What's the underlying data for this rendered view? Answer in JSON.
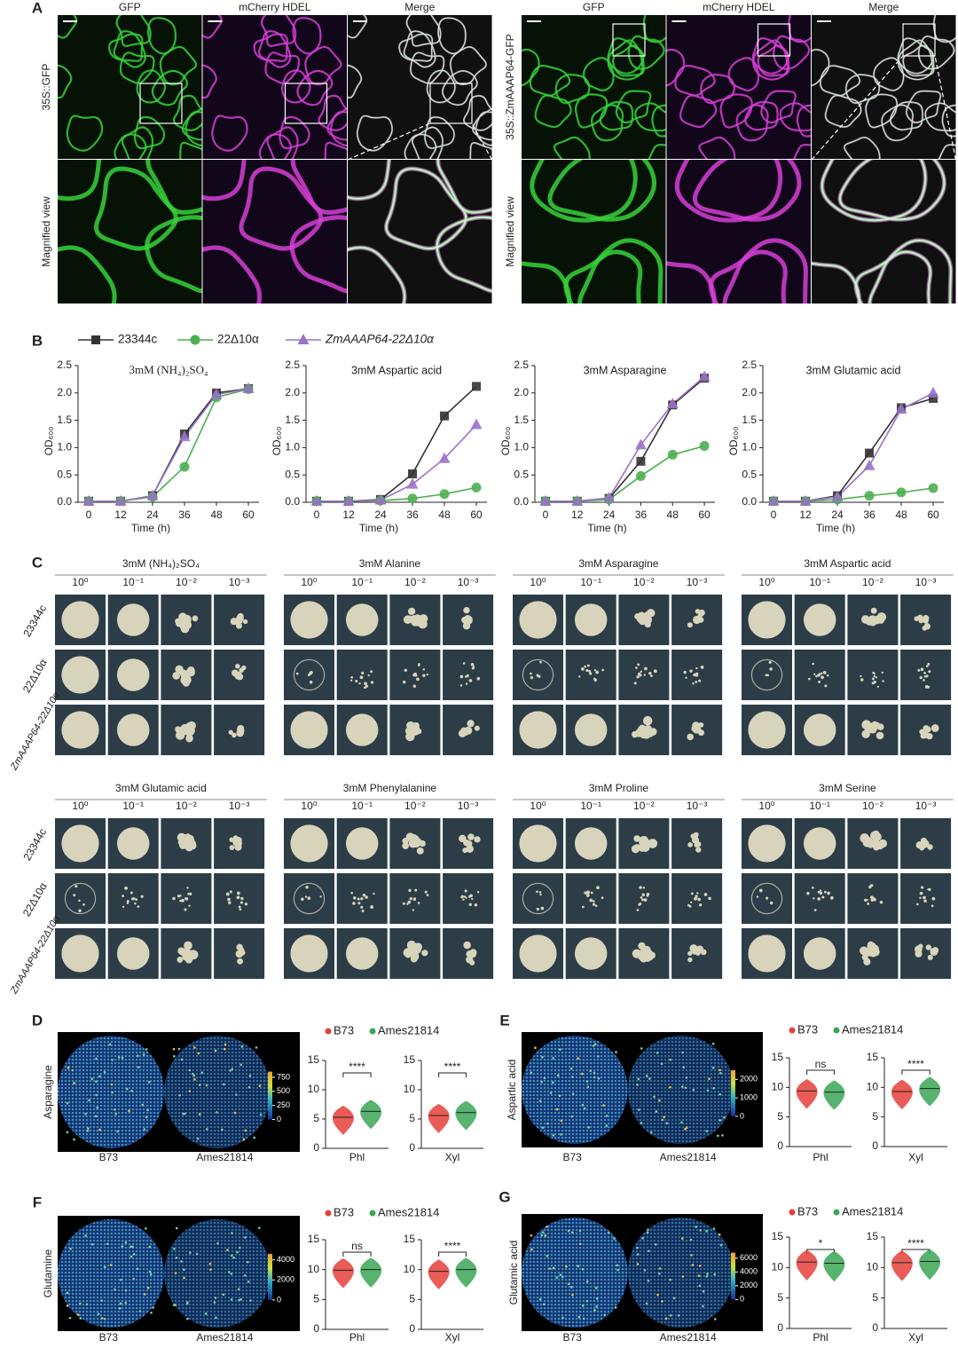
{
  "panel_labels": [
    "A",
    "B",
    "C",
    "D",
    "E",
    "F",
    "G"
  ],
  "panel_a": [
    {
      "row_labels": [
        "35S::GFP",
        "Magnified view"
      ],
      "columns": [
        "GFP",
        "mCherry HDEL",
        "Merge"
      ]
    },
    {
      "row_labels": [
        "35S::ZmAAAP64-GFP",
        "Magnified view"
      ],
      "columns": [
        "GFP",
        "mCherry HDEL",
        "Merge"
      ]
    }
  ],
  "panel_c": {
    "dilutions": [
      "10⁰",
      "10⁻¹",
      "10⁻²",
      "10⁻³"
    ],
    "strains": [
      "23344c",
      "22Δ10α",
      "ZmAAAP64-22Δ10α"
    ],
    "conditions": [
      "3mM (NH₄)₂SO₄",
      "3mM Alanine",
      "3mM Asparagine",
      "3mM Aspartic acid",
      "3mM Glutamic acid",
      "3mM Phenylalanine",
      "3mM Proline",
      "3mM Serine"
    ]
  },
  "heatmaps": [
    {
      "ylabel": "Asparagine",
      "samples": [
        "B73",
        "Ames21814"
      ],
      "colorbar_lim": [
        0,
        850
      ],
      "colorbar_ticks": [
        0,
        250,
        500,
        750
      ]
    },
    {
      "ylabel": "Aspartic acid",
      "samples": [
        "B73",
        "Ames21814"
      ],
      "colorbar_lim": [
        0,
        2500
      ],
      "colorbar_ticks": [
        0,
        1000,
        2000
      ]
    },
    {
      "ylabel": "Glutamine",
      "samples": [
        "B73",
        "Ames21814"
      ],
      "colorbar_lim": [
        0,
        4600
      ],
      "colorbar_ticks": [
        0,
        2000,
        4000
      ]
    },
    {
      "ylabel": "Glutamic acid",
      "samples": [
        "B73",
        "Ames21814"
      ],
      "colorbar_lim": [
        0,
        6800
      ],
      "colorbar_ticks": [
        0,
        2000,
        4000,
        6000
      ]
    }
  ],
  "chart_data": [
    {
      "type": "line",
      "title": "3mM (NH₄)₂SO₄",
      "xlabel": "Time (h)",
      "ylabel": "OD₆₀₀",
      "x": [
        0,
        12,
        24,
        36,
        48,
        60
      ],
      "xlim": [
        -4,
        64
      ],
      "xticks": [
        0,
        12,
        24,
        36,
        48,
        60
      ],
      "ylim": [
        0,
        2.5
      ],
      "yticks": [
        {
          "value": 0,
          "label": "0.0"
        },
        0.5,
        {
          "value": 1,
          "label": "1.0"
        },
        1.5,
        {
          "value": 2,
          "label": "2.0"
        },
        2.5
      ],
      "series": [
        {
          "name": "23344c",
          "color": "#333333",
          "marker": "square",
          "values": [
            0.02,
            0.02,
            0.12,
            1.25,
            2.0,
            2.08
          ]
        },
        {
          "name": "22Δ10α",
          "color": "#4caf50",
          "marker": "circle",
          "values": [
            0.02,
            0.02,
            0.1,
            0.65,
            1.92,
            2.07
          ]
        },
        {
          "name": "ZmAAAP64-22Δ10α",
          "color": "#9b72c9",
          "marker": "triangle",
          "values": [
            0.02,
            0.02,
            0.12,
            1.2,
            1.97,
            2.08
          ]
        }
      ]
    },
    {
      "type": "line",
      "title": "3mM Aspartic acid",
      "xlabel": "Time (h)",
      "ylabel": "OD₆₀₀",
      "x": [
        0,
        12,
        24,
        36,
        48,
        60
      ],
      "xlim": [
        -4,
        64
      ],
      "xticks": [
        0,
        12,
        24,
        36,
        48,
        60
      ],
      "ylim": [
        0,
        2.5
      ],
      "yticks": [
        {
          "value": 0,
          "label": "0.0"
        },
        0.5,
        {
          "value": 1,
          "label": "1.0"
        },
        1.5,
        {
          "value": 2,
          "label": "2.0"
        },
        2.5
      ],
      "series": [
        {
          "color": "#333333",
          "marker": "square",
          "values": [
            0.02,
            0.02,
            0.05,
            0.52,
            1.58,
            2.12
          ]
        },
        {
          "color": "#4caf50",
          "marker": "circle",
          "values": [
            0.02,
            0.02,
            0.03,
            0.07,
            0.15,
            0.27
          ]
        },
        {
          "color": "#9b72c9",
          "marker": "triangle",
          "values": [
            0.02,
            0.02,
            0.04,
            0.33,
            0.8,
            1.42
          ]
        }
      ]
    },
    {
      "type": "line",
      "title": "3mM Asparagine",
      "xlabel": "Time (h)",
      "ylabel": "OD₆₀₀",
      "x": [
        0,
        12,
        24,
        36,
        48,
        60
      ],
      "xlim": [
        -4,
        64
      ],
      "xticks": [
        0,
        12,
        24,
        36,
        48,
        60
      ],
      "ylim": [
        0,
        2.5
      ],
      "yticks": [
        {
          "value": 0,
          "label": "0.0"
        },
        0.5,
        {
          "value": 1,
          "label": "1.0"
        },
        1.5,
        {
          "value": 2,
          "label": "2.0"
        },
        2.5
      ],
      "series": [
        {
          "color": "#333333",
          "marker": "square",
          "values": [
            0.02,
            0.02,
            0.07,
            0.75,
            1.78,
            2.27
          ]
        },
        {
          "color": "#4caf50",
          "marker": "circle",
          "values": [
            0.02,
            0.02,
            0.05,
            0.48,
            0.87,
            1.03
          ]
        },
        {
          "color": "#9b72c9",
          "marker": "triangle",
          "values": [
            0.02,
            0.02,
            0.08,
            1.05,
            1.8,
            2.3
          ]
        }
      ]
    },
    {
      "type": "line",
      "title": "3mM Glutamic acid",
      "xlabel": "Time (h)",
      "ylabel": "OD₆₀₀",
      "x": [
        0,
        12,
        24,
        36,
        48,
        60
      ],
      "xlim": [
        -4,
        64
      ],
      "xticks": [
        0,
        12,
        24,
        36,
        48,
        60
      ],
      "ylim": [
        0,
        2.5
      ],
      "yticks": [
        {
          "value": 0,
          "label": "0.0"
        },
        0.5,
        {
          "value": 1,
          "label": "1.0"
        },
        1.5,
        {
          "value": 2,
          "label": "2.0"
        },
        2.5
      ],
      "series": [
        {
          "color": "#333333",
          "marker": "square",
          "values": [
            0.02,
            0.02,
            0.12,
            0.9,
            1.73,
            1.9
          ]
        },
        {
          "color": "#4caf50",
          "marker": "circle",
          "values": [
            0.02,
            0.02,
            0.05,
            0.12,
            0.18,
            0.26
          ]
        },
        {
          "color": "#9b72c9",
          "marker": "triangle",
          "values": [
            0.02,
            0.02,
            0.1,
            0.67,
            1.7,
            2.0
          ]
        }
      ]
    },
    {
      "type": "violin",
      "categories": [
        "Phl",
        "Xyl"
      ],
      "ylim": [
        0,
        15
      ],
      "yticks": [
        0,
        5,
        10,
        15
      ],
      "annotations": [
        "****",
        "****"
      ],
      "series": [
        {
          "name": "B73",
          "color": "#e5403a",
          "values": [
            5.3,
            5.6
          ]
        },
        {
          "name": "Ames21814",
          "color": "#3aa655",
          "values": [
            6.3,
            6.1
          ]
        }
      ]
    },
    {
      "type": "violin",
      "categories": [
        "Phl",
        "Xyl"
      ],
      "ylim": [
        0,
        15
      ],
      "yticks": [
        0,
        5,
        10,
        15
      ],
      "annotations": [
        "ns",
        "****"
      ],
      "series": [
        {
          "name": "B73",
          "color": "#e5403a",
          "values": [
            9.4,
            9.3
          ]
        },
        {
          "name": "Ames21814",
          "color": "#3aa655",
          "values": [
            9.2,
            9.8
          ]
        }
      ]
    },
    {
      "type": "violin",
      "categories": [
        "Phl",
        "Xyl"
      ],
      "ylim": [
        0,
        15
      ],
      "yticks": [
        0,
        5,
        10,
        15
      ],
      "annotations": [
        "ns",
        "****"
      ],
      "series": [
        {
          "name": "B73",
          "color": "#e5403a",
          "values": [
            9.9,
            9.7
          ]
        },
        {
          "name": "Ames21814",
          "color": "#3aa655",
          "values": [
            10.0,
            10.0
          ]
        }
      ]
    },
    {
      "type": "violin",
      "categories": [
        "Phl",
        "Xyl"
      ],
      "ylim": [
        0,
        15
      ],
      "yticks": [
        0,
        5,
        10,
        15
      ],
      "annotations": [
        "*",
        "****"
      ],
      "series": [
        {
          "name": "B73",
          "color": "#e5403a",
          "values": [
            10.9,
            10.8
          ]
        },
        {
          "name": "Ames21814",
          "color": "#3aa655",
          "values": [
            10.7,
            11.0
          ]
        }
      ]
    }
  ]
}
